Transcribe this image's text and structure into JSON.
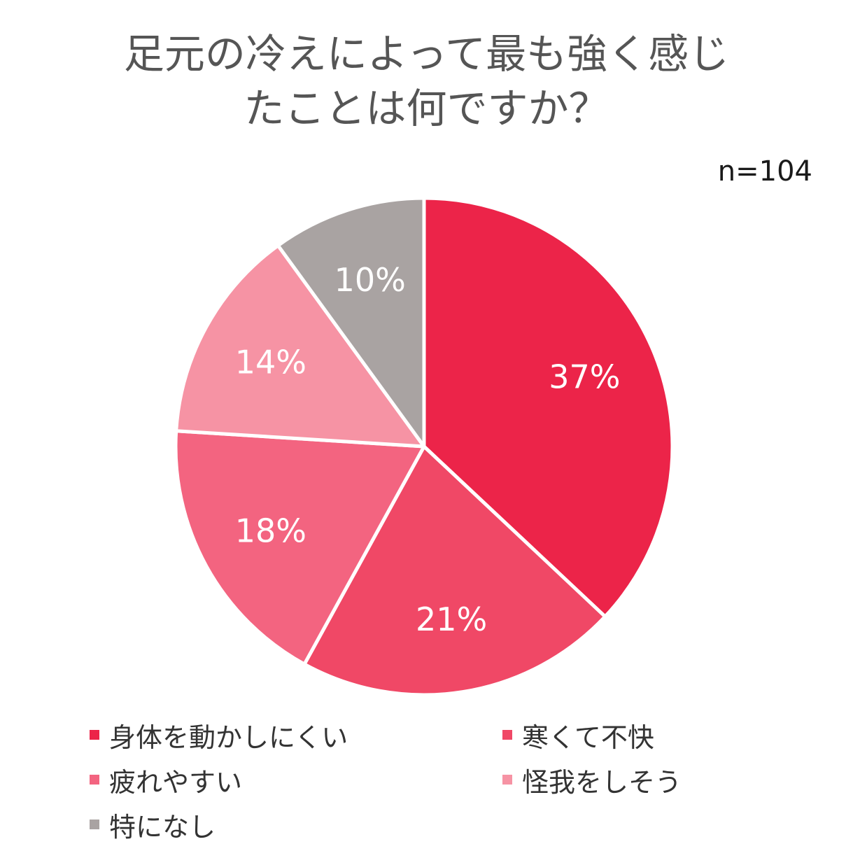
{
  "title_lines": [
    "足元の冷えによって最も強く感じ",
    "たことは何ですか？"
  ],
  "sample_size": "n=104",
  "chart_data": {
    "type": "pie",
    "title": "足元の冷えによって最も強く感じたことは何ですか？",
    "annotation": "n=104",
    "legend_placement": "bottom",
    "slices": [
      {
        "name": "身体を動かしにくい",
        "value": 37,
        "label": "37%",
        "color": "#ec2449"
      },
      {
        "name": "寒くて不快",
        "value": 21,
        "label": "21%",
        "color": "#f04866"
      },
      {
        "name": "疲れやすい",
        "value": 18,
        "label": "18%",
        "color": "#f36480"
      },
      {
        "name": "怪我をしそう",
        "value": 14,
        "label": "14%",
        "color": "#f693a4"
      },
      {
        "name": "特になし",
        "value": 10,
        "label": "10%",
        "color": "#a9a3a2"
      }
    ]
  }
}
